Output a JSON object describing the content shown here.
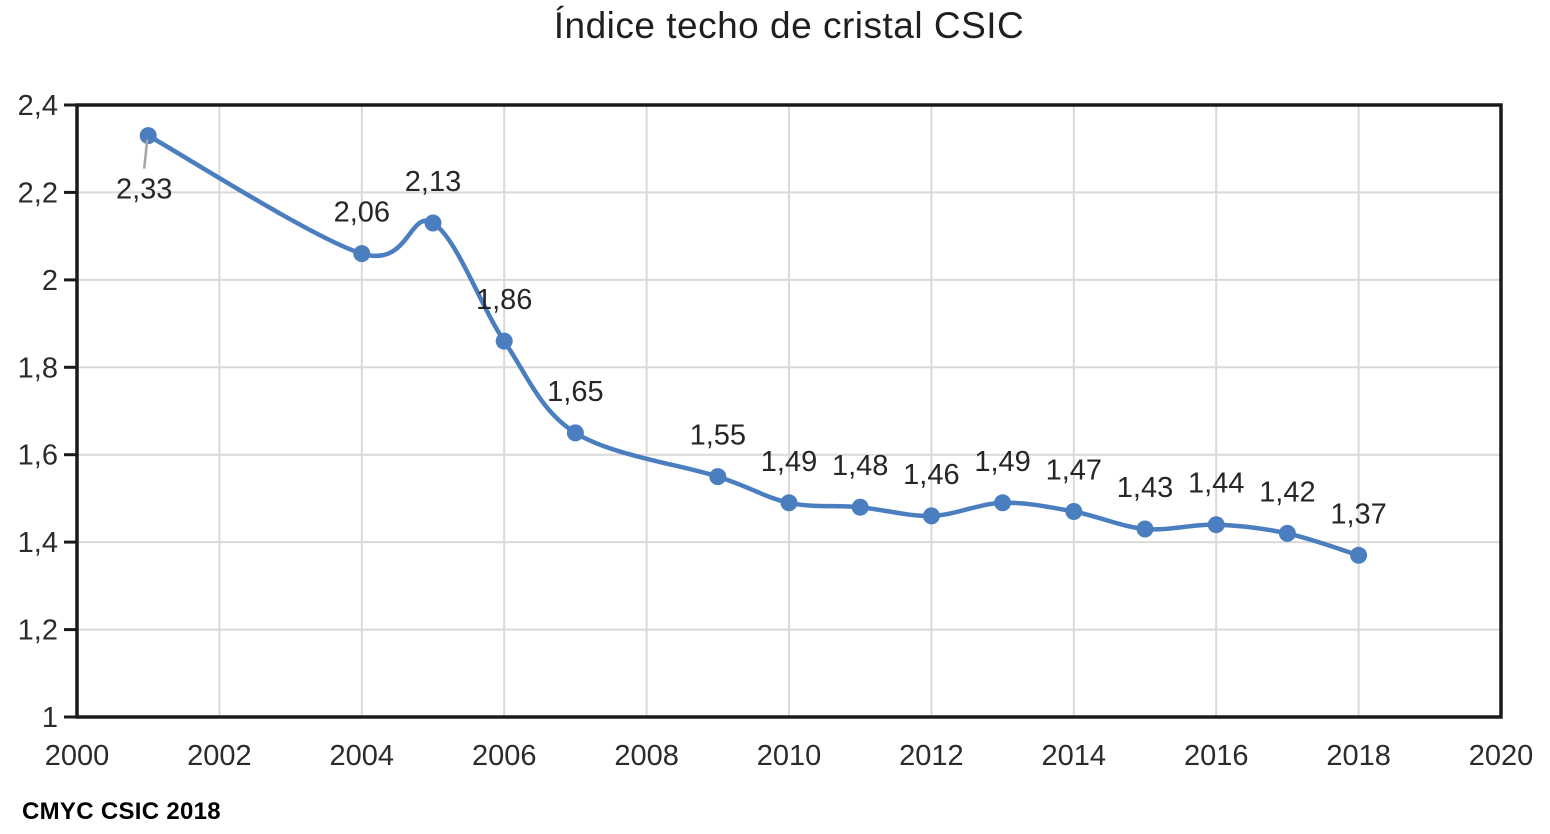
{
  "title": "Índice techo de cristal CSIC",
  "caption": "CMYC CSIC 2018",
  "chart_data": {
    "type": "line",
    "title": "Índice techo de cristal CSIC",
    "xlabel": "",
    "ylabel": "",
    "legend": "none",
    "grid": true,
    "smooth": true,
    "series_name": "Índice techo de cristal",
    "series_color": "#4A7EBE",
    "gridline_color": "#D9D9D9",
    "axis_color": "#1A1A1A",
    "leader_color": "#A6A6A6",
    "xlim": [
      2000,
      2020
    ],
    "ylim": [
      1,
      2.4
    ],
    "x_ticks": [
      {
        "value": 2000,
        "label": "2000"
      },
      {
        "value": 2002,
        "label": "2002"
      },
      {
        "value": 2004,
        "label": "2004"
      },
      {
        "value": 2006,
        "label": "2006"
      },
      {
        "value": 2008,
        "label": "2008"
      },
      {
        "value": 2010,
        "label": "2010"
      },
      {
        "value": 2012,
        "label": "2012"
      },
      {
        "value": 2014,
        "label": "2014"
      },
      {
        "value": 2016,
        "label": "2016"
      },
      {
        "value": 2018,
        "label": "2018"
      },
      {
        "value": 2020,
        "label": "2020"
      }
    ],
    "y_ticks": [
      {
        "value": 1,
        "label": "1"
      },
      {
        "value": 1.2,
        "label": "1,2"
      },
      {
        "value": 1.4,
        "label": "1,4"
      },
      {
        "value": 1.6,
        "label": "1,6"
      },
      {
        "value": 1.8,
        "label": "1,8"
      },
      {
        "value": 2,
        "label": "2"
      },
      {
        "value": 2.2,
        "label": "2,2"
      },
      {
        "value": 2.4,
        "label": "2,4"
      }
    ],
    "points": [
      {
        "x": 2001,
        "y": 2.33,
        "label": "2,33",
        "label_placement": "below-leader"
      },
      {
        "x": 2004,
        "y": 2.06,
        "label": "2,06"
      },
      {
        "x": 2005,
        "y": 2.13,
        "label": "2,13"
      },
      {
        "x": 2006,
        "y": 1.86,
        "label": "1,86"
      },
      {
        "x": 2007,
        "y": 1.65,
        "label": "1,65"
      },
      {
        "x": 2009,
        "y": 1.55,
        "label": "1,55"
      },
      {
        "x": 2010,
        "y": 1.49,
        "label": "1,49"
      },
      {
        "x": 2011,
        "y": 1.48,
        "label": "1,48"
      },
      {
        "x": 2012,
        "y": 1.46,
        "label": "1,46"
      },
      {
        "x": 2013,
        "y": 1.49,
        "label": "1,49"
      },
      {
        "x": 2014,
        "y": 1.47,
        "label": "1,47"
      },
      {
        "x": 2015,
        "y": 1.43,
        "label": "1,43"
      },
      {
        "x": 2016,
        "y": 1.44,
        "label": "1,44"
      },
      {
        "x": 2017,
        "y": 1.42,
        "label": "1,42"
      },
      {
        "x": 2018,
        "y": 1.37,
        "label": "1,37"
      }
    ]
  }
}
